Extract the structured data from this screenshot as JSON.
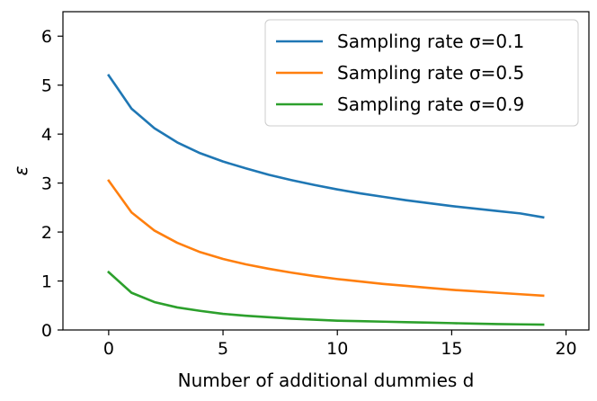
{
  "chart_data": {
    "type": "line",
    "xlabel": "Number of additional dummies d",
    "ylabel": "ε",
    "xlim": [
      -2,
      21
    ],
    "ylim": [
      0,
      6.5
    ],
    "xticks": [
      0,
      5,
      10,
      15,
      20
    ],
    "yticks": [
      0,
      1,
      2,
      3,
      4,
      5,
      6
    ],
    "grid": false,
    "legend_position": "top-right",
    "x": [
      0,
      1,
      2,
      3,
      4,
      5,
      6,
      7,
      8,
      9,
      10,
      11,
      12,
      13,
      14,
      15,
      16,
      17,
      18,
      19
    ],
    "series": [
      {
        "name": "Sampling rate σ=0.1",
        "color": "#1f77b4",
        "values": [
          5.2,
          4.52,
          4.12,
          3.83,
          3.61,
          3.44,
          3.3,
          3.17,
          3.06,
          2.96,
          2.87,
          2.79,
          2.72,
          2.65,
          2.59,
          2.53,
          2.48,
          2.43,
          2.38,
          2.3
        ]
      },
      {
        "name": "Sampling rate σ=0.5",
        "color": "#ff7f0e",
        "values": [
          3.05,
          2.4,
          2.03,
          1.78,
          1.59,
          1.45,
          1.34,
          1.25,
          1.17,
          1.1,
          1.04,
          0.99,
          0.94,
          0.9,
          0.86,
          0.82,
          0.79,
          0.76,
          0.73,
          0.7
        ]
      },
      {
        "name": "Sampling rate σ=0.9",
        "color": "#2ca02c",
        "values": [
          1.18,
          0.76,
          0.57,
          0.46,
          0.39,
          0.33,
          0.29,
          0.26,
          0.23,
          0.21,
          0.19,
          0.18,
          0.17,
          0.16,
          0.15,
          0.14,
          0.13,
          0.12,
          0.115,
          0.11
        ]
      }
    ]
  }
}
